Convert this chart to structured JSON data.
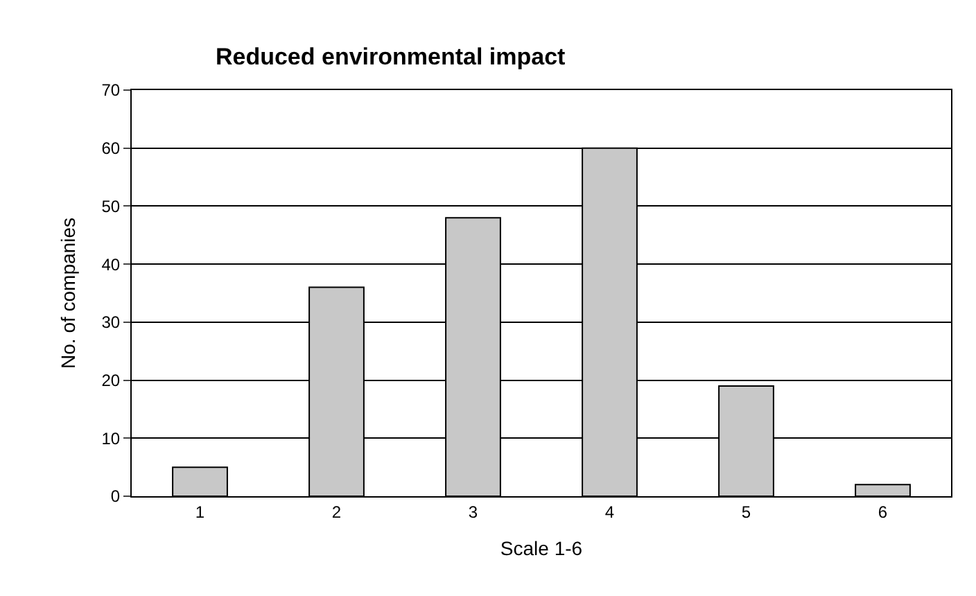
{
  "chart_data": {
    "type": "bar",
    "title": "Reduced environmental impact",
    "xlabel": "Scale 1-6",
    "ylabel": "No. of companies",
    "categories": [
      "1",
      "2",
      "3",
      "4",
      "5",
      "6"
    ],
    "values": [
      5,
      36,
      48,
      60,
      19,
      2
    ],
    "color": "#c8c8c8",
    "ylim": [
      0,
      70
    ],
    "yticks": [
      0,
      10,
      20,
      30,
      40,
      50,
      60,
      70
    ],
    "grid": "y",
    "legend": false
  }
}
